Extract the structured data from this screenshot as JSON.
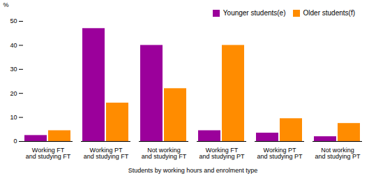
{
  "chart_data": {
    "type": "bar",
    "categories": [
      "Working FT\nand studying FT",
      "Working PT\nand studying FT",
      "Not working\nand studying FT",
      "Working FT\nand studying PT",
      "Working PT\nand studying PT",
      "Not working\nand studying PT"
    ],
    "series": [
      {
        "name": "Younger students(e)",
        "color": "#9B009B",
        "values": [
          2.5,
          47,
          40,
          4.5,
          3.5,
          2
        ]
      },
      {
        "name": "Older students(f)",
        "color": "#FF8C00",
        "values": [
          4.5,
          16,
          22,
          40,
          9.5,
          7.5
        ]
      }
    ],
    "xlabel": "Students by working hours and enrolment type",
    "ylabel": "%",
    "ylim": [
      0,
      50
    ],
    "yticks": [
      0,
      10,
      20,
      30,
      40,
      50
    ],
    "grid": false,
    "legend": "upper right"
  }
}
